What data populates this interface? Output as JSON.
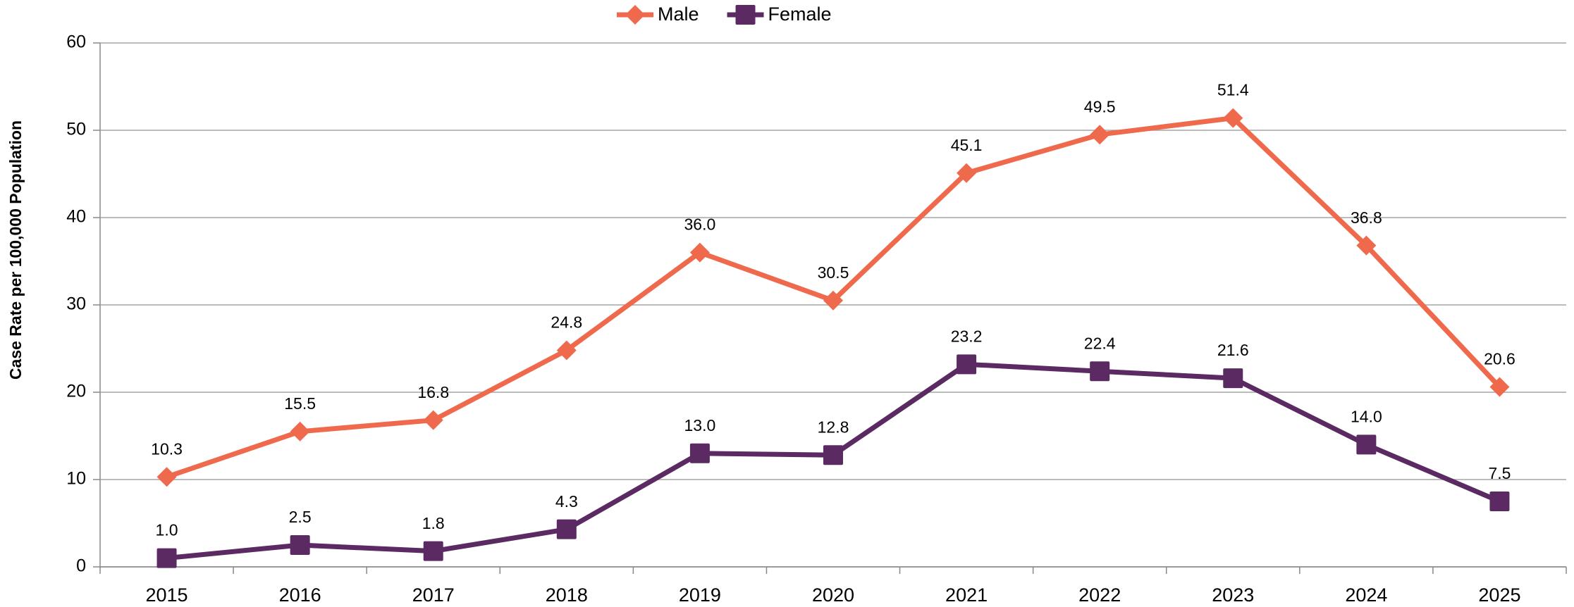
{
  "chart_data": {
    "type": "line",
    "y_label": "Case Rate per 100,000 Population",
    "categories": [
      "2015",
      "2016",
      "2017",
      "2018",
      "2019",
      "2020",
      "2021",
      "2022",
      "2023",
      "2024",
      "2025"
    ],
    "series": [
      {
        "name": "Male",
        "color": "#ef6a4c",
        "marker": "diamond",
        "values": [
          10.3,
          15.5,
          16.8,
          24.8,
          36.0,
          30.5,
          45.1,
          49.5,
          51.4,
          36.8,
          20.6
        ],
        "value_labels": [
          "10.3",
          "15.5",
          "16.8",
          "24.8",
          "36.0",
          "30.5",
          "45.1",
          "49.5",
          "51.4",
          "36.8",
          "20.6"
        ]
      },
      {
        "name": "Female",
        "color": "#5b2a63",
        "marker": "square",
        "values": [
          1.0,
          2.5,
          1.8,
          4.3,
          13.0,
          12.8,
          23.2,
          22.4,
          21.6,
          14.0,
          7.5
        ],
        "value_labels": [
          "1.0",
          "2.5",
          "1.8",
          "4.3",
          "13.0",
          "12.8",
          "23.2",
          "22.4",
          "21.6",
          "14.0",
          "7.5"
        ]
      }
    ],
    "ylim": [
      0,
      60
    ],
    "yticks": [
      0,
      10,
      20,
      30,
      40,
      50,
      60
    ],
    "grid": true,
    "legend": "top"
  }
}
